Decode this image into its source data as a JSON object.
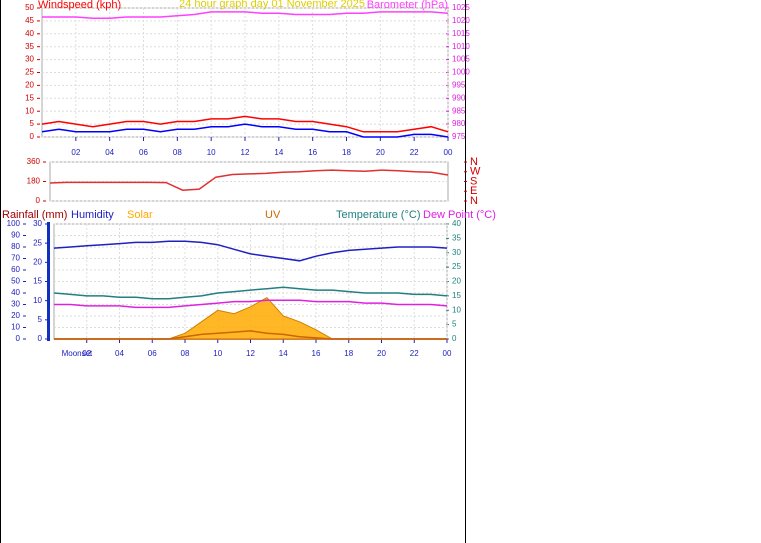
{
  "chart_data": [
    {
      "type": "line",
      "title": "24 hour graph day 01 November 2025",
      "x": [
        0,
        1,
        2,
        3,
        4,
        5,
        6,
        7,
        8,
        9,
        10,
        11,
        12,
        13,
        14,
        15,
        16,
        17,
        18,
        19,
        20,
        21,
        22,
        23,
        24
      ],
      "xlim": [
        0,
        24
      ],
      "xticks": [
        {
          "value": 2,
          "label": "02"
        },
        {
          "value": 4,
          "label": "04"
        },
        {
          "value": 6,
          "label": "06"
        },
        {
          "value": 8,
          "label": "08"
        },
        10,
        12,
        14,
        16,
        18,
        20,
        22,
        {
          "value": 24,
          "label": "00"
        }
      ],
      "ylim": [
        0,
        50
      ],
      "yticks": [
        0,
        5,
        10,
        15,
        20,
        25,
        30,
        35,
        40,
        45,
        50
      ],
      "y2lim": [
        975,
        1025
      ],
      "y2ticks": [
        975,
        980,
        985,
        990,
        995,
        1000,
        1005,
        1010,
        1015,
        1020,
        1025
      ],
      "grid": true,
      "series": [
        {
          "name": "Windspeed (kph)",
          "color": "#ff0000",
          "values": [
            5,
            6,
            5,
            4,
            5,
            6,
            6,
            5,
            6,
            6,
            7,
            7,
            8,
            7,
            7,
            6,
            6,
            5,
            4,
            2,
            2,
            2,
            3,
            4,
            2
          ]
        },
        {
          "color": "#0000ff",
          "values": [
            2,
            3,
            2,
            2,
            2,
            3,
            3,
            2,
            3,
            3,
            4,
            4,
            5,
            4,
            4,
            3,
            3,
            2,
            2,
            0,
            0,
            0,
            1,
            1,
            0
          ]
        },
        {
          "name": "Barometer (hPa)",
          "color": "#ff40ff",
          "axis": "y2",
          "values": [
            1021.5,
            1021.5,
            1021.5,
            1021,
            1021,
            1021.5,
            1021.5,
            1021.5,
            1022,
            1022.5,
            1023.5,
            1023.5,
            1023.5,
            1023,
            1023,
            1022.5,
            1022.5,
            1022.5,
            1023,
            1023,
            1023.5,
            1023.5,
            1023.5,
            1023.5,
            1023
          ]
        }
      ]
    },
    {
      "type": "line",
      "x": [
        0,
        1,
        2,
        3,
        4,
        5,
        6,
        7,
        8,
        9,
        10,
        11,
        12,
        13,
        14,
        15,
        16,
        17,
        18,
        19,
        20,
        21,
        22,
        23,
        24
      ],
      "xlim": [
        0,
        24
      ],
      "ylim": [
        0,
        360
      ],
      "yticks": [
        0,
        180,
        360
      ],
      "y2lim": [
        0,
        360
      ],
      "y2ticks": [
        {
          "value": 0,
          "label": "N"
        },
        {
          "value": 90,
          "label": "E"
        },
        {
          "value": 180,
          "label": "S"
        },
        {
          "value": 270,
          "label": "W"
        },
        {
          "value": 360,
          "label": "N"
        }
      ],
      "grid": true,
      "series": [
        {
          "color": "#e03030",
          "values": [
            166,
            172,
            172,
            172,
            172,
            172,
            172,
            170,
            100,
            110,
            220,
            245,
            250,
            255,
            265,
            270,
            280,
            285,
            280,
            275,
            285,
            280,
            270,
            265,
            240
          ]
        }
      ]
    },
    {
      "type": "line",
      "x": [
        0,
        1,
        2,
        3,
        4,
        5,
        6,
        7,
        8,
        9,
        10,
        11,
        12,
        13,
        14,
        15,
        16,
        17,
        18,
        19,
        20,
        21,
        22,
        23,
        24
      ],
      "xlim": [
        0,
        24
      ],
      "xticks": [
        {
          "value": 2,
          "label": "02"
        },
        {
          "value": 4,
          "label": "04"
        },
        {
          "value": 6,
          "label": "06"
        },
        {
          "value": 8,
          "label": "08"
        },
        10,
        12,
        14,
        16,
        18,
        20,
        22,
        {
          "value": 24,
          "label": "00"
        }
      ],
      "annotation": {
        "text": "Moonset",
        "x": 1.4
      },
      "ylim": [
        0,
        100
      ],
      "yticks": [
        0,
        10,
        20,
        30,
        40,
        50,
        60,
        70,
        80,
        90,
        100
      ],
      "y3lim": [
        0,
        30
      ],
      "y3ticks": [
        0,
        5,
        10,
        15,
        20,
        25,
        30
      ],
      "y2lim": [
        0,
        40
      ],
      "y2ticks": [
        0,
        5,
        10,
        15,
        20,
        25,
        30,
        35,
        40
      ],
      "grid": true,
      "series": [
        {
          "name": "Rainfall (mm)",
          "color": "#a00000",
          "axis": "y3",
          "values": [
            0,
            0,
            0,
            0,
            0,
            0,
            0,
            0,
            0,
            0,
            0,
            0,
            0,
            0,
            0,
            0,
            0,
            0,
            0,
            0,
            0,
            0,
            0,
            0,
            0
          ]
        },
        {
          "name": "Humidity",
          "color": "#2020c0",
          "values": [
            79,
            80,
            81,
            82,
            83,
            84,
            84,
            85,
            85,
            84,
            82,
            78,
            74,
            72,
            70,
            68,
            72,
            75,
            77,
            78,
            79,
            80,
            80,
            80,
            79
          ]
        },
        {
          "name": "Solar",
          "color": "#ffaa00",
          "area": true,
          "values": [
            0,
            0,
            0,
            0,
            0,
            0,
            0,
            0,
            5,
            15,
            25,
            22,
            28,
            36,
            20,
            15,
            8,
            0,
            0,
            0,
            0,
            0,
            0,
            0,
            0
          ]
        },
        {
          "name": "UV",
          "color": "#cc6600",
          "values": [
            0,
            0,
            0,
            0,
            0,
            0,
            0,
            0,
            2,
            4,
            5,
            6,
            7,
            5,
            4,
            2,
            1,
            0,
            0,
            0,
            0,
            0,
            0,
            0,
            0
          ]
        },
        {
          "name": "Temperature (°C)",
          "color": "#208080",
          "axis": "y2",
          "values": [
            16,
            15.5,
            15,
            15,
            14.5,
            14.5,
            14,
            14,
            14.5,
            15,
            16,
            16.5,
            17,
            17.5,
            18,
            17.5,
            17,
            17,
            16.5,
            16,
            16,
            16,
            15.5,
            15.5,
            15
          ]
        },
        {
          "name": "Dew Point (°C)",
          "color": "#e020e0",
          "axis": "y2",
          "values": [
            12,
            12,
            11.5,
            11.5,
            11.5,
            11,
            11,
            11,
            11.5,
            12,
            12.5,
            13,
            13,
            13.5,
            13.5,
            13.5,
            13,
            13,
            13,
            12.5,
            12.5,
            12,
            12,
            12,
            11.5
          ]
        }
      ]
    }
  ]
}
